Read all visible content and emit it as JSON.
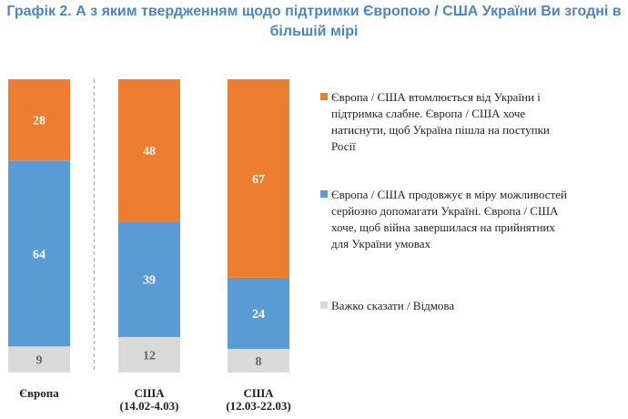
{
  "chart_data": {
    "type": "bar",
    "stacked": true,
    "title_lines": [
      "Графік 2. А з яким твердженням щодо підтримки Європою / США України Ви згодні в",
      "більшій мірі"
    ],
    "categories": [
      {
        "lines": [
          "Європа"
        ]
      },
      {
        "lines": [
          "США",
          "(14.02-4.03)"
        ]
      },
      {
        "lines": [
          "США",
          "(12.03-22.03)"
        ]
      }
    ],
    "series": [
      {
        "key": "hard",
        "values": [
          9,
          12,
          8
        ],
        "color": "#d9d9d9",
        "label_color": "#666666",
        "legend_lines": [
          "Важко сказати / Відмова"
        ]
      },
      {
        "key": "support",
        "values": [
          64,
          39,
          24
        ],
        "color": "#5b9bd5",
        "label_color": "#ffffff",
        "legend_lines": [
          "Європа / США продовжує в міру можливостей",
          "серйозно допомагати Україні. Європа / США",
          "хоче, щоб війна завершилася на прийнятних",
          "для України умовах"
        ]
      },
      {
        "key": "tired",
        "values": [
          28,
          48,
          67
        ],
        "color": "#ed7d31",
        "label_color": "#ffffff",
        "legend_lines": [
          "Європа / США втомлюється від України і",
          "підтримка слабне. Європа / США хоче",
          "натиснути, щоб Україна пішла на поступки",
          "Росії"
        ]
      }
    ],
    "legend_order": [
      "tired",
      "support",
      "hard"
    ],
    "legend_position": "right",
    "separator_after_category": 0,
    "grid": false
  }
}
